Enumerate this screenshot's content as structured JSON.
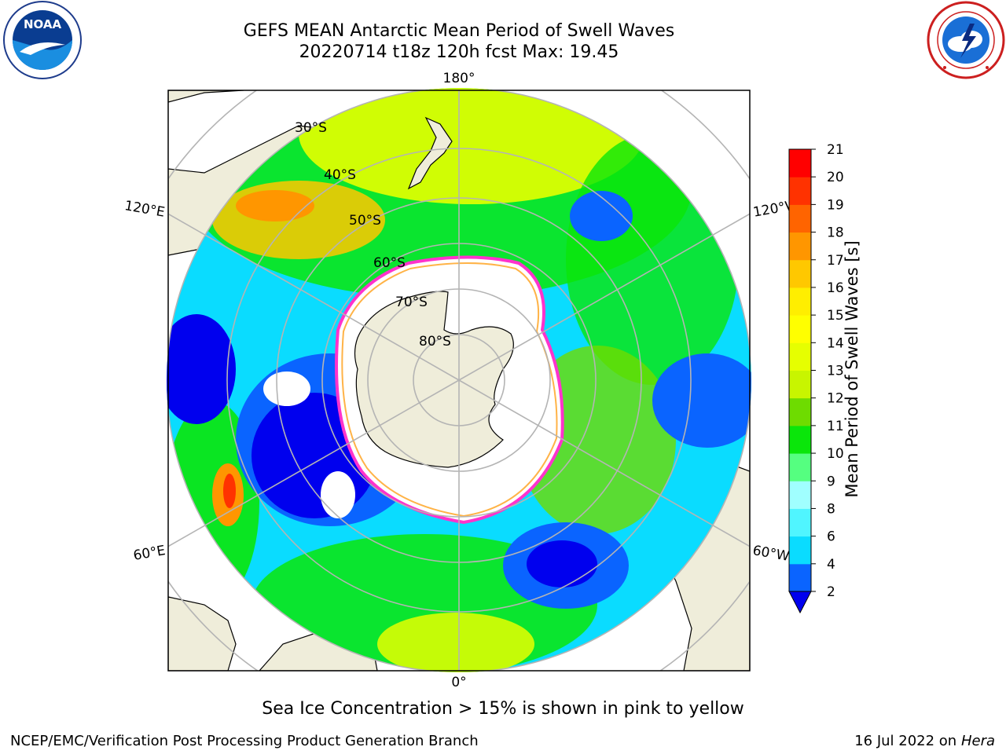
{
  "title": {
    "line1": "GEFS MEAN Antarctic Mean Period of Swell Waves",
    "line2": "20220714 t18z 120h fcst   Max: 19.45"
  },
  "map": {
    "projection": "south-polar-stereographic",
    "latitude_labels": [
      "30°S",
      "40°S",
      "50°S",
      "60°S",
      "70°S",
      "80°S"
    ],
    "longitude_labels": {
      "top": "180°",
      "bottom": "0°",
      "upper_left": "120°E",
      "lower_left": "60°E",
      "upper_right": "120°W",
      "lower_right": "60°W"
    },
    "colors": {
      "land": "#efedda",
      "sea_ice_outline": "#ff33cc",
      "sea_ice_inner": "#ffb347",
      "graticule": "#b4b4b4",
      "no_data": "#ffffff"
    }
  },
  "colorbar": {
    "label": "Mean Period of Swell Waves [s]",
    "ticks": [
      "2",
      "4",
      "6",
      "8",
      "9",
      "10",
      "11",
      "12",
      "13",
      "14",
      "15",
      "16",
      "17",
      "18",
      "19",
      "20",
      "21"
    ],
    "colors": [
      "#0a64ff",
      "#0adcff",
      "#50f5ff",
      "#a0ffff",
      "#55ff80",
      "#0ae60a",
      "#6edc00",
      "#c8f500",
      "#e6ff00",
      "#ffff00",
      "#ffee00",
      "#ffc800",
      "#ff9600",
      "#ff6400",
      "#ff3200",
      "#ff0000"
    ],
    "under_color": "#0000ee",
    "extend": "min"
  },
  "footnote": "Sea Ice Concentration > 15% is shown in pink to yellow",
  "footer": {
    "left": "NCEP/EMC/Verification Post Processing Product Generation Branch",
    "right_prefix": "16 Jul 2022 on ",
    "right_italic": "Hera"
  },
  "logos": {
    "noaa": {
      "name": "noaa-logo",
      "text": "NOAA"
    },
    "nws": {
      "name": "nws-logo"
    }
  }
}
